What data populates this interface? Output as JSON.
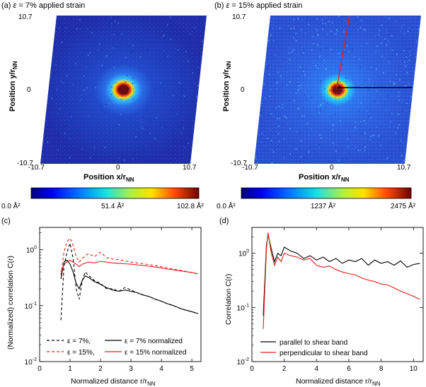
{
  "colors": {
    "field_low": "#1f2a9a",
    "field_mid": "#2f5fe0",
    "ring_hot": "#f2e23a",
    "core": "#6a0a10",
    "curve_black": "#000000",
    "curve_red": "#e0201c"
  },
  "panel_a": {
    "title_prefix": "(a)",
    "title_eps": "ε",
    "title_rest": "= 7% applied strain",
    "y_axis_label": "Position y/r",
    "y_axis_sub": "NN",
    "x_axis_label": "Position x/r",
    "x_axis_sub": "NN",
    "tick_top": "10.7",
    "tick_mid": "0",
    "tick_bottom": "-10.7",
    "tick_left": "-10.7",
    "tick_center": "0",
    "tick_right": "10.7",
    "colorbar_min": "0.0 Å²",
    "colorbar_mid": "51.4 Å²",
    "colorbar_max": "102.8 Å²"
  },
  "panel_b": {
    "title_prefix": "(b)",
    "title_eps": "ε",
    "title_rest": "= 15% applied strain",
    "y_axis_label": "Position y/r",
    "y_axis_sub": "NN",
    "x_axis_label": "Position x/r",
    "x_axis_sub": "NN",
    "tick_top": "10.7",
    "tick_mid": "0",
    "tick_bottom": "-10.7",
    "tick_left": "-10.7",
    "tick_center": "0",
    "tick_right": "10.7",
    "colorbar_min": "0.0 Å²",
    "colorbar_mid": "1237 Å²",
    "colorbar_max": "2475 Å²"
  },
  "panel_c": {
    "label": "(c)",
    "y_axis_label": "(Normalized) correlation C(r)",
    "x_axis_label": "Normalized distance r/r",
    "x_axis_sub": "NN",
    "legend": [
      "ε = 7%,",
      "ε = 7% normalized",
      "ε = 15%,",
      "ε = 15% normalized"
    ]
  },
  "panel_d": {
    "label": "(d)",
    "y_axis_label": "Correlation C(r)",
    "x_axis_label": "Normalized distance r/r",
    "x_axis_sub": "NN",
    "legend": [
      "parallel to shear band",
      "perpendicular to shear band"
    ]
  },
  "chart_data": [
    {
      "type": "line",
      "panel": "c",
      "title": "",
      "xlabel": "Normalized distance r/rNN",
      "ylabel": "(Normalized) correlation C(r)",
      "xlim": [
        0,
        5.3
      ],
      "ylim": [
        0.01,
        2.5
      ],
      "yscale": "log",
      "xticks": [
        0,
        1,
        2,
        3,
        4,
        5
      ],
      "yticks": [
        "10-2",
        "10-1",
        "100"
      ],
      "series": [
        {
          "name": "ε = 7%",
          "style": "dashed",
          "color": "#000000",
          "x": [
            0.7,
            0.8,
            0.9,
            1.0,
            1.1,
            1.2,
            1.3,
            1.4,
            1.5,
            1.6,
            1.8,
            2.0,
            2.2,
            2.4,
            2.6,
            2.8,
            3.0,
            3.2,
            3.4,
            3.6,
            3.8,
            4.0,
            4.2,
            4.4,
            4.6,
            4.8,
            5.0,
            5.2
          ],
          "y": [
            0.055,
            0.5,
            0.9,
            1.3,
            0.7,
            0.2,
            0.13,
            0.28,
            0.4,
            0.35,
            0.28,
            0.25,
            0.2,
            0.2,
            0.18,
            0.21,
            0.19,
            0.17,
            0.155,
            0.145,
            0.13,
            0.12,
            0.108,
            0.1,
            0.09,
            0.083,
            0.078,
            0.072
          ]
        },
        {
          "name": "ε = 7% normalized",
          "style": "solid",
          "color": "#000000",
          "x": [
            0.7,
            0.8,
            0.9,
            1.0,
            1.1,
            1.2,
            1.3,
            1.4,
            1.5,
            1.6,
            1.8,
            2.0,
            2.2,
            2.4,
            2.6,
            2.8,
            3.0,
            3.2,
            3.4,
            3.6,
            3.8,
            4.0,
            4.2,
            4.4,
            4.6,
            4.8,
            5.0,
            5.2
          ],
          "y": [
            0.3,
            0.6,
            0.65,
            0.55,
            0.4,
            0.25,
            0.2,
            0.28,
            0.34,
            0.32,
            0.27,
            0.24,
            0.21,
            0.19,
            0.18,
            0.19,
            0.18,
            0.17,
            0.155,
            0.145,
            0.13,
            0.12,
            0.108,
            0.1,
            0.09,
            0.083,
            0.078,
            0.072
          ]
        },
        {
          "name": "ε = 15%",
          "style": "dashed",
          "color": "#e0201c",
          "x": [
            0.7,
            0.8,
            0.9,
            1.0,
            1.1,
            1.2,
            1.3,
            1.4,
            1.6,
            1.8,
            2.0,
            2.2,
            2.4,
            2.6,
            2.8,
            3.0,
            3.4,
            3.8,
            4.2,
            4.6,
            5.0,
            5.2
          ],
          "y": [
            0.35,
            0.9,
            1.4,
            1.6,
            1.2,
            0.75,
            0.6,
            0.7,
            0.85,
            0.75,
            0.9,
            0.72,
            0.68,
            0.66,
            0.63,
            0.6,
            0.56,
            0.52,
            0.47,
            0.43,
            0.39,
            0.37
          ]
        },
        {
          "name": "ε = 15% normalized",
          "style": "solid",
          "color": "#e0201c",
          "x": [
            0.7,
            0.8,
            0.9,
            1.0,
            1.1,
            1.2,
            1.3,
            1.4,
            1.6,
            1.8,
            2.0,
            2.2,
            2.4,
            2.6,
            2.8,
            3.0,
            3.4,
            3.8,
            4.2,
            4.6,
            5.0,
            5.2
          ],
          "y": [
            0.4,
            0.55,
            0.6,
            0.65,
            0.6,
            0.55,
            0.5,
            0.55,
            0.6,
            0.58,
            0.62,
            0.6,
            0.58,
            0.57,
            0.56,
            0.55,
            0.52,
            0.49,
            0.45,
            0.42,
            0.39,
            0.37
          ]
        }
      ]
    },
    {
      "type": "line",
      "panel": "d",
      "title": "",
      "xlabel": "Normalized distance r/rNN",
      "ylabel": "Correlation C(r)",
      "xlim": [
        0,
        10.6
      ],
      "ylim": [
        0.01,
        3
      ],
      "yscale": "log",
      "xticks": [
        0,
        2,
        4,
        6,
        8,
        10
      ],
      "yticks": [
        "10-2",
        "10-1",
        "100"
      ],
      "series": [
        {
          "name": "parallel to shear band",
          "color": "#000000",
          "x": [
            0.7,
            0.9,
            1.0,
            1.2,
            1.4,
            1.6,
            1.8,
            2.0,
            2.4,
            2.8,
            3.2,
            3.6,
            4.0,
            4.4,
            4.8,
            5.2,
            5.6,
            6.0,
            6.4,
            6.8,
            7.2,
            7.6,
            8.0,
            8.4,
            8.8,
            9.2,
            9.6,
            10.0,
            10.4
          ],
          "y": [
            0.07,
            1.4,
            2.2,
            1.2,
            0.7,
            1.0,
            0.9,
            1.3,
            1.1,
            1.0,
            0.8,
            0.9,
            0.75,
            0.85,
            0.7,
            0.8,
            0.65,
            0.75,
            0.7,
            0.8,
            0.6,
            0.75,
            0.65,
            0.7,
            0.6,
            0.72,
            0.55,
            0.62,
            0.65
          ]
        },
        {
          "name": "perpendicular to shear band",
          "color": "#e0201c",
          "x": [
            0.7,
            0.9,
            1.0,
            1.2,
            1.4,
            1.6,
            1.8,
            2.0,
            2.4,
            2.8,
            3.2,
            3.6,
            4.0,
            4.4,
            4.8,
            5.2,
            5.6,
            6.0,
            6.4,
            6.8,
            7.2,
            7.6,
            8.0,
            8.4,
            8.8,
            9.2,
            9.6,
            10.0,
            10.4
          ],
          "y": [
            0.04,
            1.2,
            2.4,
            1.0,
            0.6,
            0.85,
            0.7,
            1.0,
            0.9,
            0.85,
            0.75,
            0.8,
            0.6,
            0.55,
            0.58,
            0.5,
            0.45,
            0.42,
            0.4,
            0.35,
            0.32,
            0.3,
            0.27,
            0.26,
            0.23,
            0.2,
            0.18,
            0.16,
            0.14
          ]
        }
      ]
    }
  ]
}
